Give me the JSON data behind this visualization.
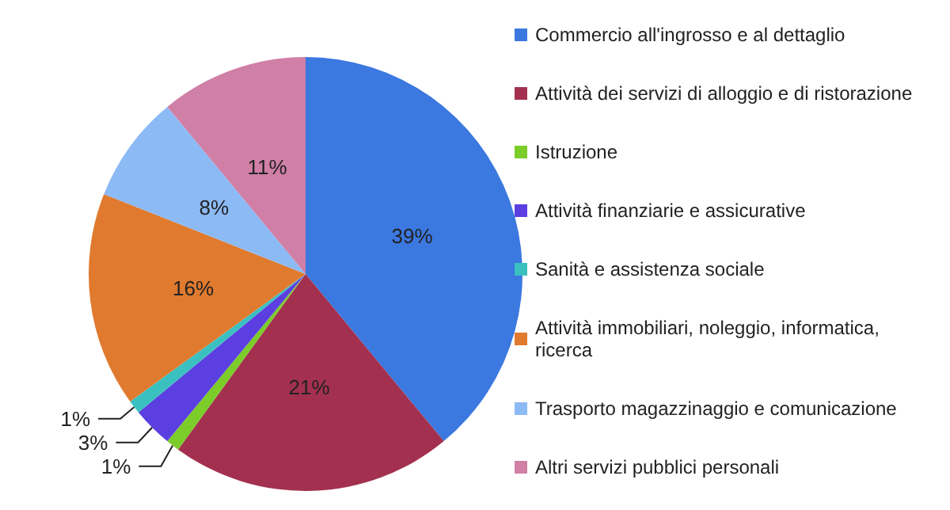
{
  "chart_data": {
    "type": "pie",
    "categories": [
      "Commercio all'ingrosso e al dettaglio",
      "Attività dei servizi di alloggio e di ristorazione",
      "Istruzione",
      "Attività finanziarie e assicurative",
      "Sanità e assistenza sociale",
      "Attività immobiliari, noleggio, informatica, ricerca",
      "Trasporto magazzinaggio e comunicazione",
      "Altri servizi pubblici personali"
    ],
    "values": [
      39,
      21,
      1,
      3,
      1,
      16,
      8,
      11
    ],
    "value_labels": [
      "39%",
      "21%",
      "1%",
      "3%",
      "1%",
      "16%",
      "8%",
      "11%"
    ],
    "colors": [
      "#3b78e0",
      "#a3304f",
      "#7ccc2a",
      "#5b3fe0",
      "#3bc0c0",
      "#e07a2e",
      "#8cbaf5",
      "#d07fa6"
    ],
    "legend": "right"
  }
}
